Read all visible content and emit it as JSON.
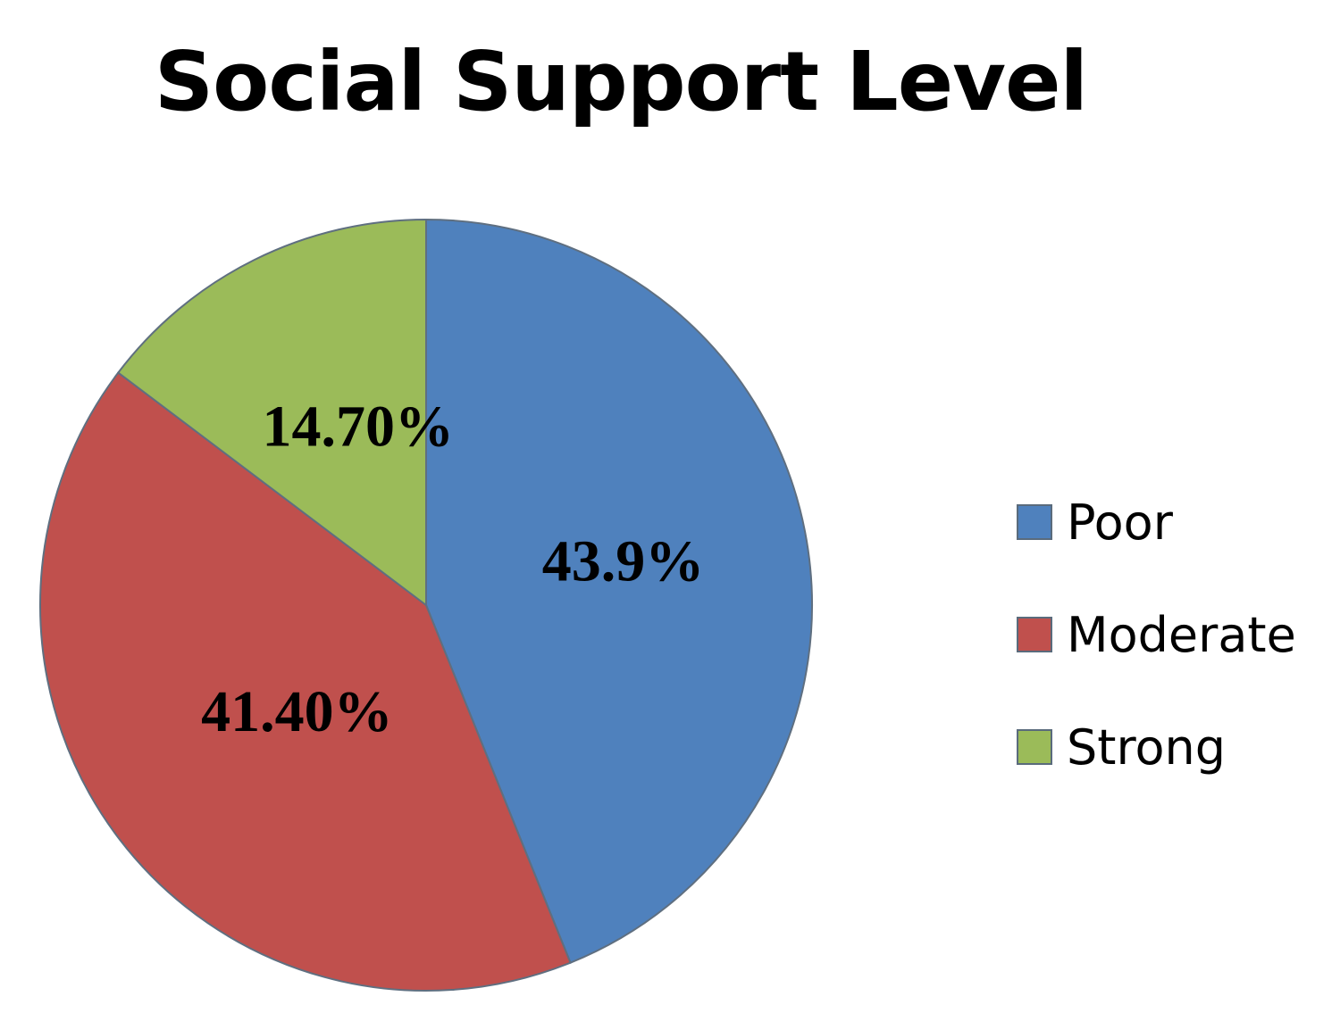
{
  "chart_data": {
    "type": "pie",
    "title": "Social Support Level",
    "slices": [
      {
        "name": "Poor",
        "value": 43.9,
        "label": "43.9%",
        "color": "#4f81bd"
      },
      {
        "name": "Moderate",
        "value": 41.4,
        "label": "41.40%",
        "color": "#c0504d"
      },
      {
        "name": "Strong",
        "value": 14.7,
        "label": "14.70%",
        "color": "#9bbb59"
      }
    ],
    "start_angle": "12 o'clock",
    "direction": "clockwise",
    "legend_position": "right"
  }
}
